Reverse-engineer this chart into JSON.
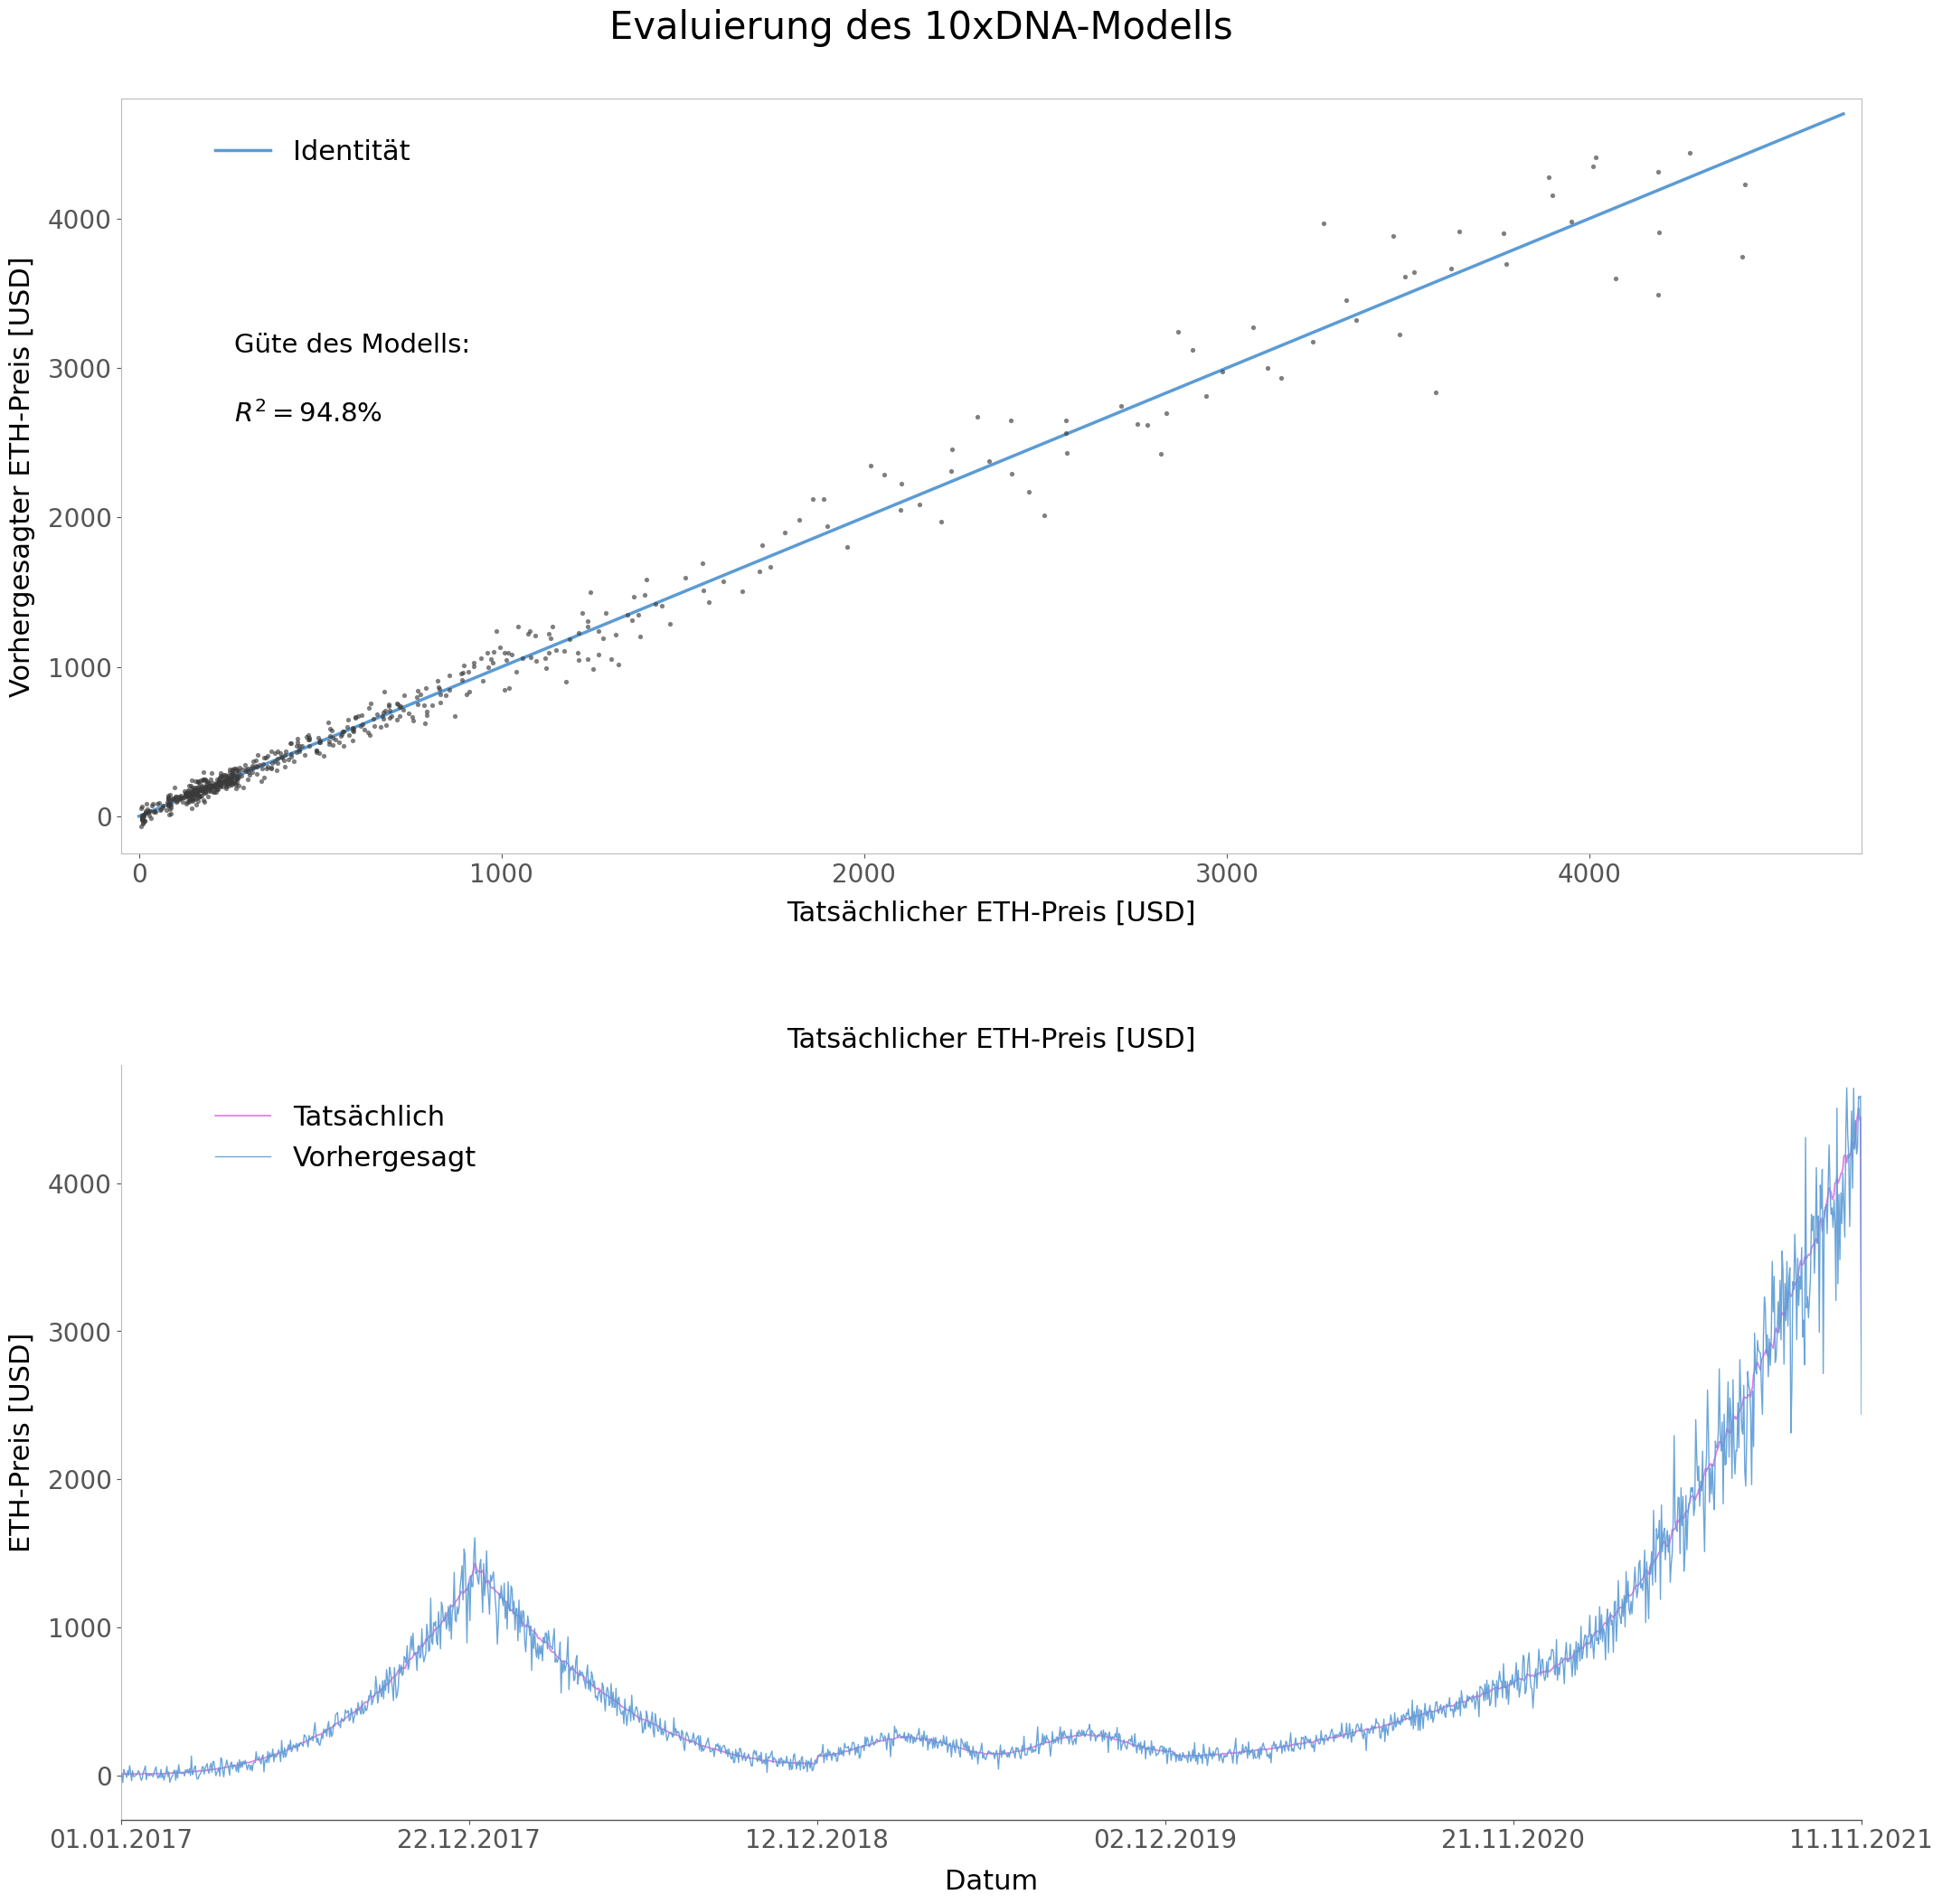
{
  "title": "Evaluierung des 10xDNA-Modells",
  "scatter_xlabel": "Tatsächlicher ETH-Preis [USD]",
  "scatter_ylabel": "Vorhergesagter ETH-Preis [USD]",
  "scatter_identity_label": "Identität",
  "scatter_identity_color": "#5b9bd5",
  "scatter_dot_color": "#3a3a3a",
  "scatter_dot_size": 14,
  "r2_text_line1": "Güte des Modells:",
  "r2_text_line2": "$R^2 = 94.8\\%$",
  "scatter_xlim": [
    -50,
    4750
  ],
  "scatter_ylim": [
    -250,
    4800
  ],
  "scatter_xticks": [
    0,
    1000,
    2000,
    3000,
    4000
  ],
  "scatter_yticks": [
    0,
    1000,
    2000,
    3000,
    4000
  ],
  "time_title": "Tatsächlicher ETH-Preis [USD]",
  "time_xlabel": "Datum",
  "time_ylabel": "ETH-Preis [USD]",
  "time_actual_label": "Tatsächlich",
  "time_predicted_label": "Vorhergesagt",
  "time_actual_color": "#e080e8",
  "time_predicted_color": "#5b9bd5",
  "time_xtick_labels": [
    "01.01.2017",
    "22.12.2017",
    "12.12.2018",
    "02.12.2019",
    "21.11.2020",
    "11.11.2021"
  ],
  "time_yticks": [
    0,
    1000,
    2000,
    3000,
    4000
  ],
  "bg_color": "#ffffff",
  "font_size_title": 30,
  "font_size_labels": 22,
  "font_size_ticks": 20,
  "font_size_legend": 22,
  "font_size_annotation": 21
}
